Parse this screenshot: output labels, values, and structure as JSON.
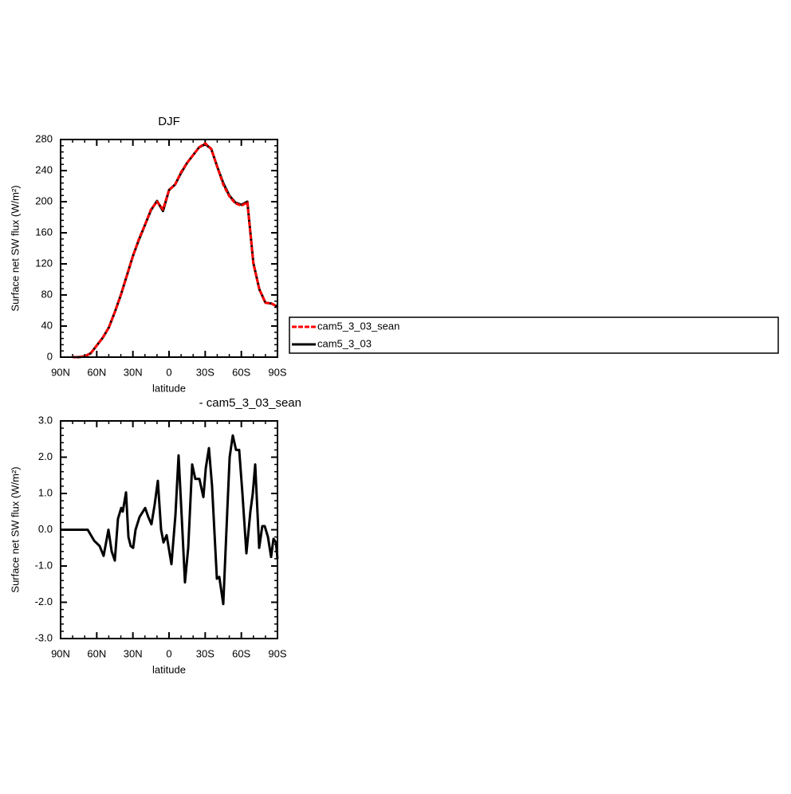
{
  "chart_data": [
    {
      "type": "line",
      "title": "DJF",
      "xlabel": "latitude",
      "ylabel": "Surface net SW flux (W/m²)",
      "x": [
        90,
        85,
        80,
        75,
        70,
        65,
        60,
        55,
        50,
        45,
        40,
        35,
        30,
        25,
        20,
        15,
        10,
        5,
        0,
        -5,
        -10,
        -15,
        -20,
        -25,
        -30,
        -35,
        -40,
        -45,
        -50,
        -55,
        -60,
        -65,
        -70,
        -75,
        -80,
        -85,
        -90
      ],
      "xlim": [
        90,
        -90
      ],
      "xticks": [
        {
          "value": 90,
          "label": "90N"
        },
        {
          "value": 60,
          "label": "60N"
        },
        {
          "value": 30,
          "label": "30N"
        },
        0,
        {
          "value": -30,
          "label": "30S"
        },
        {
          "value": -60,
          "label": "60S"
        },
        {
          "value": -90,
          "label": "90S"
        }
      ],
      "ylim": [
        0,
        280
      ],
      "yticks": [
        0,
        40,
        80,
        120,
        160,
        200,
        240,
        280
      ],
      "legend": "right",
      "series": [
        {
          "name": "cam5_3_03_sean",
          "color": "#ff0000",
          "linestyle": "dashed",
          "values": [
            null,
            null,
            0,
            0,
            1,
            5,
            15,
            25,
            38,
            58,
            80,
            105,
            130,
            152,
            170,
            190,
            200,
            190,
            215,
            222,
            238,
            250,
            260,
            270,
            275,
            268,
            245,
            222,
            207,
            198,
            195,
            199,
            120,
            87,
            70,
            69,
            65
          ]
        },
        {
          "name": "cam5_3_03",
          "color": "#000000",
          "linestyle": "solid",
          "values": [
            null,
            null,
            0,
            0,
            1,
            5,
            15,
            25,
            38,
            58,
            80,
            105,
            130,
            151,
            170,
            189,
            201,
            188,
            215,
            222,
            237,
            250,
            260,
            270,
            274,
            268,
            245,
            224,
            208,
            199,
            196,
            200,
            121,
            87,
            70,
            69,
            65
          ]
        }
      ]
    },
    {
      "type": "line",
      "title": "- cam5_3_03_sean",
      "xlabel": "latitude",
      "ylabel": "Surface net SW flux (W/m²)",
      "x": [
        90,
        67.5,
        62.2,
        57.6,
        54.3,
        50.3,
        47.6,
        45,
        42.4,
        39.7,
        38.4,
        35.7,
        33.7,
        31.8,
        29.8,
        27.8,
        24.5,
        19.8,
        17.2,
        14.6,
        11.9,
        9.3,
        6.6,
        4.6,
        2,
        -2,
        -5.3,
        -7.9,
        -10.6,
        -13.2,
        -15.9,
        -19.2,
        -21.8,
        -25.2,
        -28.5,
        -30.5,
        -33.1,
        -35.7,
        -39.7,
        -41.7,
        -45,
        -48.3,
        -50.3,
        -52.9,
        -55.6,
        -58.2,
        -60.9,
        -64.2,
        -67.5,
        -69.5,
        -71.5,
        -74.8,
        -77.4,
        -79.4,
        -82.1,
        -84.7,
        -86.7,
        -88.7,
        -90
      ],
      "xlim": [
        90,
        -90
      ],
      "xticks": [
        {
          "value": 90,
          "label": "90N"
        },
        {
          "value": 60,
          "label": "60N"
        },
        {
          "value": 30,
          "label": "30N"
        },
        0,
        {
          "value": -30,
          "label": "30S"
        },
        {
          "value": -60,
          "label": "60S"
        },
        {
          "value": -90,
          "label": "90S"
        }
      ],
      "ylim": [
        -3,
        3
      ],
      "yticks": [
        {
          "value": -3,
          "label": "-3.0"
        },
        {
          "value": -2,
          "label": "-2.0"
        },
        {
          "value": -1,
          "label": "-1.0"
        },
        {
          "value": 0,
          "label": "0.0"
        },
        {
          "value": 1,
          "label": "1.0"
        },
        {
          "value": 2,
          "label": "2.0"
        },
        {
          "value": 3,
          "label": "3.0"
        }
      ],
      "series": [
        {
          "color": "#000000",
          "linestyle": "solid",
          "values": [
            0,
            0,
            -0.3,
            -0.45,
            -0.72,
            0,
            -0.6,
            -0.85,
            0.3,
            0.6,
            0.5,
            1.03,
            -0.2,
            -0.45,
            -0.5,
            0,
            0.35,
            0.6,
            0.35,
            0.15,
            0.7,
            1.35,
            0,
            -0.35,
            -0.15,
            -0.95,
            0.4,
            2.05,
            0.3,
            -1.45,
            -0.5,
            1.8,
            1.4,
            1.4,
            0.9,
            1.7,
            2.25,
            1.2,
            -1.35,
            -1.3,
            -2.05,
            0.5,
            2,
            2.6,
            2.2,
            2.2,
            1,
            -0.65,
            0.5,
            1,
            1.8,
            -0.5,
            0.1,
            0.1,
            -0.2,
            -0.75,
            -0.25,
            -0.35,
            -0.8
          ]
        }
      ]
    }
  ]
}
